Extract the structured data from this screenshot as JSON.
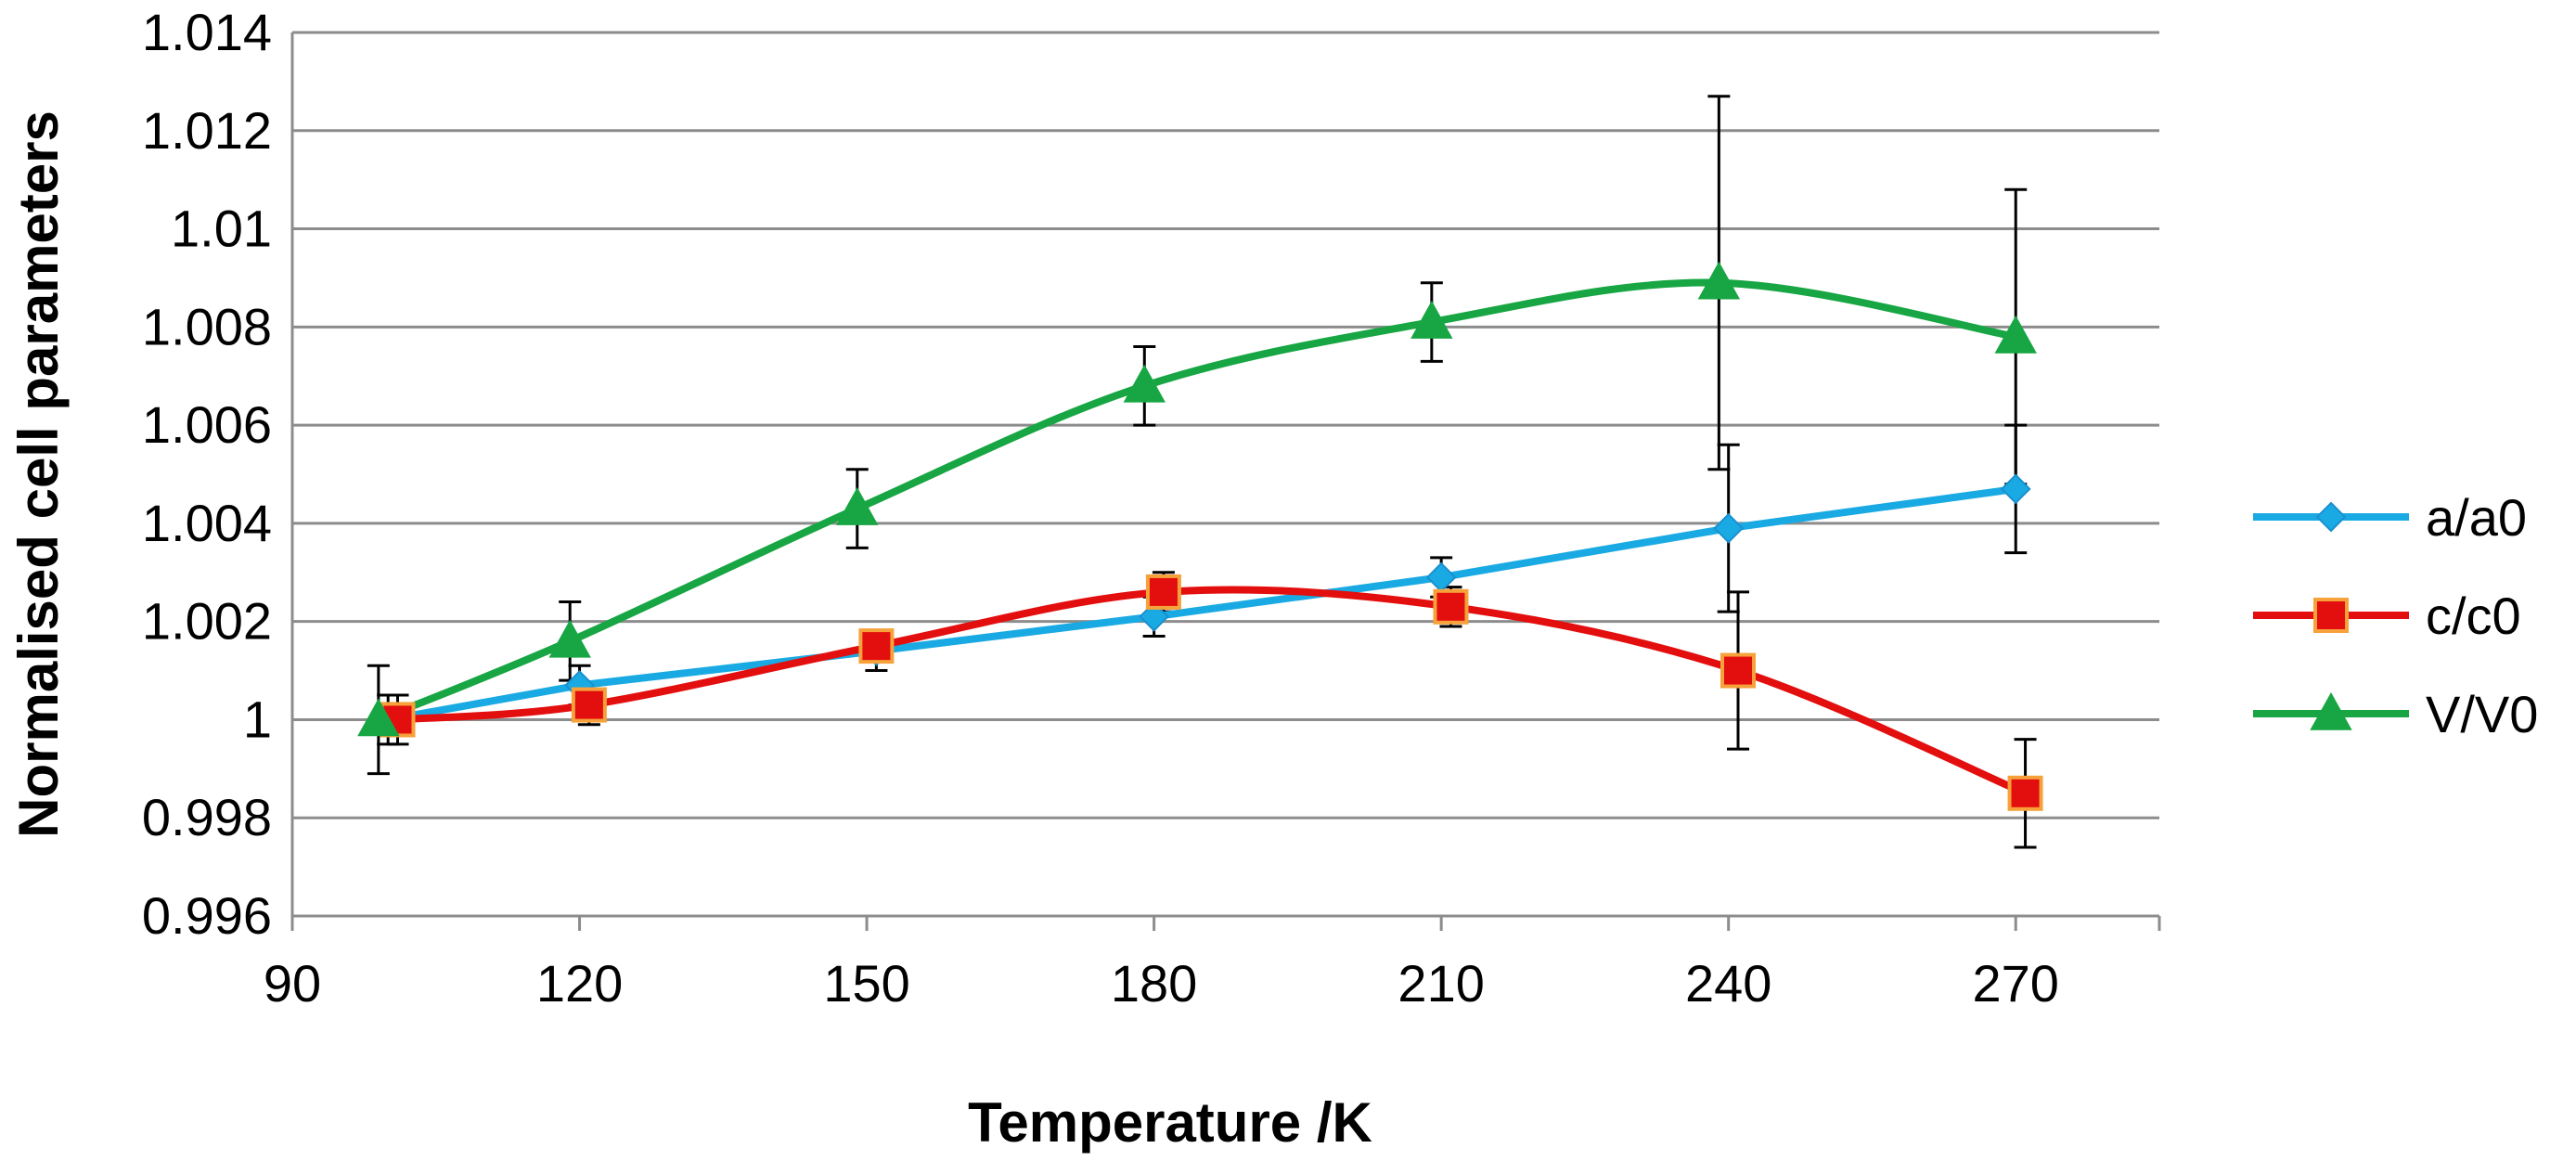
{
  "chart_data": {
    "type": "line",
    "title": "",
    "xlabel": "Temperature /K",
    "ylabel": "Normalised cell parameters",
    "xlim": [
      90,
      285
    ],
    "ylim": [
      0.996,
      1.014
    ],
    "x_ticks": [
      90,
      120,
      150,
      180,
      210,
      240,
      270
    ],
    "x_tick_labels": [
      "90",
      "120",
      "150",
      "180",
      "210",
      "240",
      "270"
    ],
    "y_ticks": [
      0.996,
      0.998,
      1,
      1.002,
      1.004,
      1.006,
      1.008,
      1.01,
      1.012,
      1.014
    ],
    "y_tick_labels": [
      "0.996",
      "0.998",
      "1",
      "1.002",
      "1.004",
      "1.006",
      "1.008",
      "1.01",
      "1.012",
      "1.014"
    ],
    "grid": "horizontal",
    "legend_position": "right",
    "series": [
      {
        "name": "a/a0",
        "color": "#1aaae3",
        "marker": "diamond",
        "x": [
          100,
          120,
          151,
          180,
          210,
          240,
          270
        ],
        "y": [
          1.0,
          1.0007,
          1.0014,
          1.0021,
          1.0029,
          1.0039,
          1.0047
        ],
        "err": [
          0.0005,
          0.0004,
          0.0004,
          0.0004,
          0.0004,
          0.0017,
          0.0013
        ]
      },
      {
        "name": "c/c0",
        "color": "#e30e0e",
        "marker": "square",
        "x": [
          101,
          121,
          151,
          181,
          211,
          241,
          271
        ],
        "y": [
          1.0,
          1.0003,
          1.0015,
          1.0026,
          1.0023,
          1.001,
          0.9985
        ],
        "err": [
          0.0005,
          0.0004,
          0.0003,
          0.0004,
          0.0004,
          0.0016,
          0.0011
        ]
      },
      {
        "name": "V/V0",
        "color": "#17a643",
        "marker": "triangle",
        "x": [
          99,
          119,
          149,
          179,
          209,
          239,
          270
        ],
        "y": [
          1.0,
          1.0016,
          1.0043,
          1.0068,
          1.0081,
          1.0089,
          1.0078
        ],
        "err": [
          0.0011,
          0.0008,
          0.0008,
          0.0008,
          0.0008,
          0.0038,
          0.003
        ]
      }
    ]
  }
}
